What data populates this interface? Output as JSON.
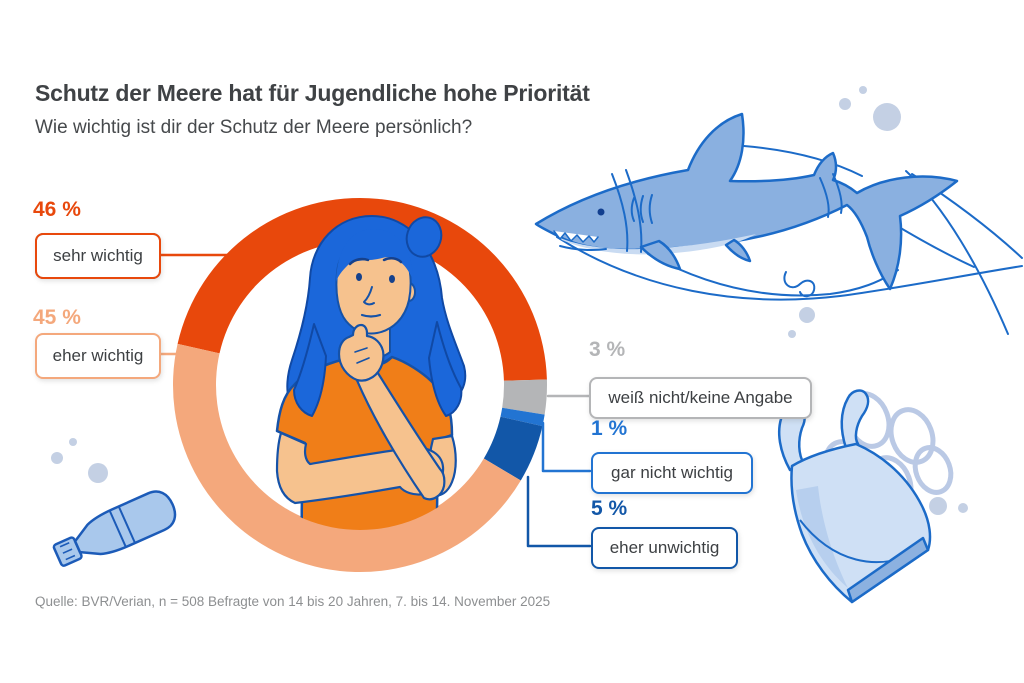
{
  "header": {
    "title": "Schutz der Meere hat für Jugendliche hohe Priorität",
    "subtitle": "Wie wichtig ist dir der Schutz der Meere persönlich?"
  },
  "chart_data": {
    "type": "pie",
    "donut": true,
    "title": "Schutz der Meere hat für Jugendliche hohe Priorität",
    "question": "Wie wichtig ist dir der Schutz der Meere persönlich?",
    "unit": "%",
    "start_angle_deg": -77.3,
    "legend_position": "callout-labels-left-and-right",
    "segments": [
      {
        "label": "sehr wichtig",
        "value": 46,
        "pct_label": "46 %",
        "color": "#e8480c"
      },
      {
        "label": "weiß nicht/keine Angabe",
        "value": 3,
        "pct_label": "3 %",
        "color": "#b4b5b7"
      },
      {
        "label": "gar nicht wichtig",
        "value": 1,
        "pct_label": "1 %",
        "color": "#2274d2"
      },
      {
        "label": "eher unwichtig",
        "value": 5,
        "pct_label": "5 %",
        "color": "#1257a8"
      },
      {
        "label": "eher wichtig",
        "value": 45,
        "pct_label": "45 %",
        "color": "#f4a87c"
      }
    ]
  },
  "source": {
    "text": "Quelle: BVR/Verian, n = 508 Befragte von 14 bis 20 Jahren, 7. bis 14. November 2025"
  },
  "illustrations": {
    "center": "thinking-young-woman",
    "top_right": "shark-entangled-in-fishing-lines",
    "bottom_left": "plastic-bottle",
    "bottom_right": "plastic-bag-with-six-pack-rings",
    "background": "bubbles"
  },
  "colors": {
    "text_dark": "#3f4245",
    "box_text": "#3d4043",
    "source_gray": "#8d8f91",
    "illustration_stroke": "#1c6bc8",
    "illustration_fill": "#8ab0e0"
  }
}
